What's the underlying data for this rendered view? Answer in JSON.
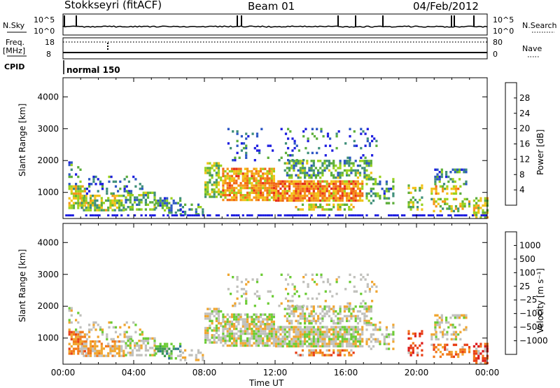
{
  "header": {
    "station": "Stokkseyri (fitACF)",
    "beam": "Beam 01",
    "date": "04/Feb/2012"
  },
  "top_panels": {
    "nsky_label": "N.Sky",
    "nsearch_label": "N.Search",
    "nsky_ticks": [
      "10^5",
      "10^0"
    ],
    "nsearch_ticks": [
      "10^5",
      "10^0"
    ],
    "freq_label": "Freq.",
    "freq_unit": "[MHz]",
    "freq_ticks": [
      "18",
      "8"
    ],
    "nave_label": "Nave",
    "nave_ticks": [
      "80",
      "0"
    ],
    "cpid_label": "CPID",
    "cpid_value": "normal 150"
  },
  "colors": {
    "power": [
      "#1f1fe0",
      "#2d57c4",
      "#3f8f7a",
      "#5cae3a",
      "#9ad21e",
      "#f2c218",
      "#f5961a",
      "#f26a18",
      "#e6301a"
    ],
    "velocity": [
      "#2545c8",
      "#2b7a8a",
      "#3f9a52",
      "#6ccc35",
      "#c0c0bc",
      "#f0a630",
      "#f27a1a",
      "#e84018",
      "#dc1a1a"
    ]
  },
  "chart_data": [
    {
      "type": "heatmap",
      "name": "power",
      "ylabel": "Slant Range [km]",
      "xlabel": "",
      "x_ticks": [
        "00:00",
        "04:00",
        "08:00",
        "12:00",
        "16:00",
        "20:00",
        "00:00"
      ],
      "y_ticks": [
        "1000",
        "2000",
        "3000",
        "4000"
      ],
      "ylim": [
        180,
        4600
      ],
      "colorbar_label": "Power [dB]",
      "colorbar_ticks": [
        "4",
        "8",
        "12",
        "16",
        "20",
        "24",
        "28"
      ],
      "colorbar_range": [
        0,
        32
      ]
    },
    {
      "type": "heatmap",
      "name": "velocity",
      "ylabel": "Slant Range [km]",
      "xlabel": "Time UT",
      "x_ticks": [
        "00:00",
        "04:00",
        "08:00",
        "12:00",
        "16:00",
        "20:00",
        "00:00"
      ],
      "y_ticks": [
        "1000",
        "2000",
        "3000",
        "4000"
      ],
      "ylim": [
        180,
        4600
      ],
      "colorbar_label": "Velocity [m s⁻¹]",
      "colorbar_ticks": [
        "1000",
        "500",
        "100",
        "25",
        "−25",
        "−100",
        "−500",
        "−1000"
      ]
    }
  ]
}
